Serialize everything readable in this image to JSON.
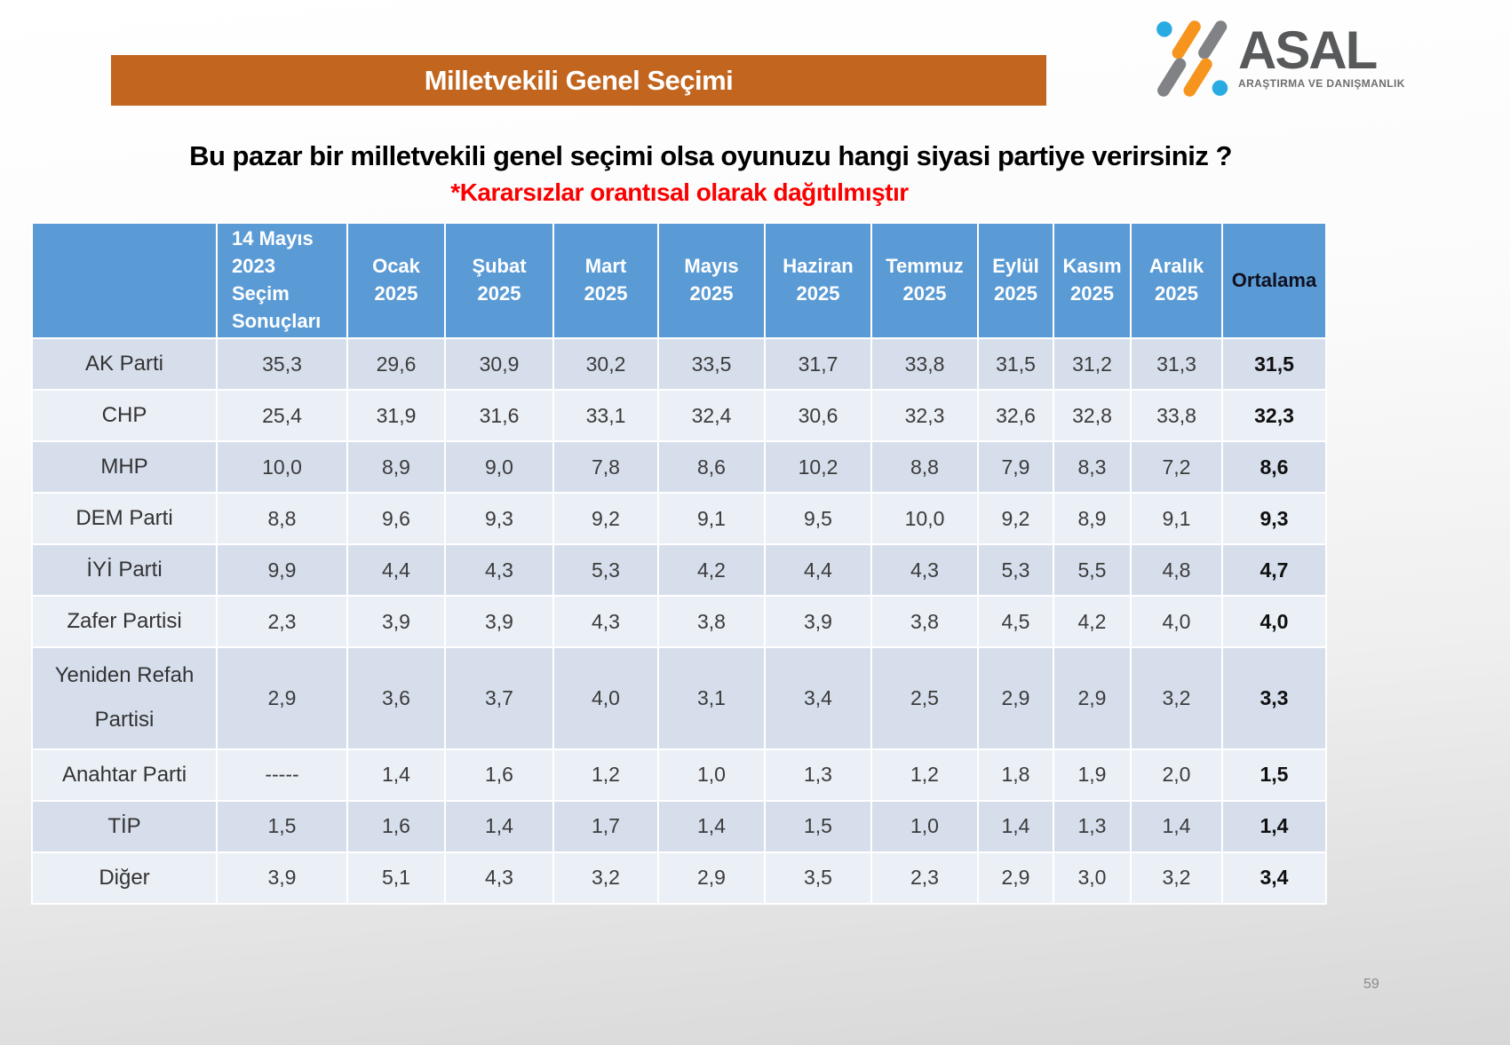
{
  "banner": {
    "title": "Milletvekili Genel Seçimi",
    "bg_color": "#C2651E"
  },
  "logo": {
    "name": "ASAL",
    "subtitle": "ARAŞTIRMA VE DANIŞMANLIK",
    "colors": {
      "orange": "#F7941E",
      "gray": "#808285",
      "blue": "#29ABE2",
      "text": "#58595B"
    }
  },
  "question": "Bu pazar bir milletvekili genel seçimi olsa oyunuzu hangi siyasi partiye verirsiniz ?",
  "note": "*Kararsızlar orantısal olarak dağıtılmıştır",
  "table_style": {
    "header_bg": "#5B9BD5",
    "row_dark": "#D6DEEC",
    "row_light": "#EBEFF6"
  },
  "chart_data": {
    "type": "table",
    "title": "Milletvekili Genel Seçimi",
    "columns": [
      "",
      "14 Mayıs\n2023\nSeçim\nSonuçları",
      "Ocak\n2025",
      "Şubat\n2025",
      "Mart\n2025",
      "Mayıs\n2025",
      "Haziran\n2025",
      "Temmuz\n2025",
      "Eylül\n2025",
      "Kasım\n2025",
      "Aralık\n2025",
      "Ortalama"
    ],
    "rows": [
      {
        "party": "AK Parti",
        "values": [
          "35,3",
          "29,6",
          "30,9",
          "30,2",
          "33,5",
          "31,7",
          "33,8",
          "31,5",
          "31,2",
          "31,3"
        ],
        "average": "31,5"
      },
      {
        "party": "CHP",
        "values": [
          "25,4",
          "31,9",
          "31,6",
          "33,1",
          "32,4",
          "30,6",
          "32,3",
          "32,6",
          "32,8",
          "33,8"
        ],
        "average": "32,3"
      },
      {
        "party": "MHP",
        "values": [
          "10,0",
          "8,9",
          "9,0",
          "7,8",
          "8,6",
          "10,2",
          "8,8",
          "7,9",
          "8,3",
          "7,2"
        ],
        "average": "8,6"
      },
      {
        "party": "DEM Parti",
        "values": [
          "8,8",
          "9,6",
          "9,3",
          "9,2",
          "9,1",
          "9,5",
          "10,0",
          "9,2",
          "8,9",
          "9,1"
        ],
        "average": "9,3"
      },
      {
        "party": "İYİ Parti",
        "values": [
          "9,9",
          "4,4",
          "4,3",
          "5,3",
          "4,2",
          "4,4",
          "4,3",
          "5,3",
          "5,5",
          "4,8"
        ],
        "average": "4,7"
      },
      {
        "party": "Zafer Partisi",
        "values": [
          "2,3",
          "3,9",
          "3,9",
          "4,3",
          "3,8",
          "3,9",
          "3,8",
          "4,5",
          "4,2",
          "4,0"
        ],
        "average": "4,0"
      },
      {
        "party": "Yeniden Refah Partisi",
        "values": [
          "2,9",
          "3,6",
          "3,7",
          "4,0",
          "3,1",
          "3,4",
          "2,5",
          "2,9",
          "2,9",
          "3,2"
        ],
        "average": "3,3"
      },
      {
        "party": "Anahtar Parti",
        "values": [
          "-----",
          "1,4",
          "1,6",
          "1,2",
          "1,0",
          "1,3",
          "1,2",
          "1,8",
          "1,9",
          "2,0"
        ],
        "average": "1,5"
      },
      {
        "party": "TİP",
        "values": [
          "1,5",
          "1,6",
          "1,4",
          "1,7",
          "1,4",
          "1,5",
          "1,0",
          "1,4",
          "1,3",
          "1,4"
        ],
        "average": "1,4"
      },
      {
        "party": "Diğer",
        "values": [
          "3,9",
          "5,1",
          "4,3",
          "3,2",
          "2,9",
          "3,5",
          "2,3",
          "2,9",
          "3,0",
          "3,2"
        ],
        "average": "3,4"
      }
    ]
  },
  "page_number": "59"
}
